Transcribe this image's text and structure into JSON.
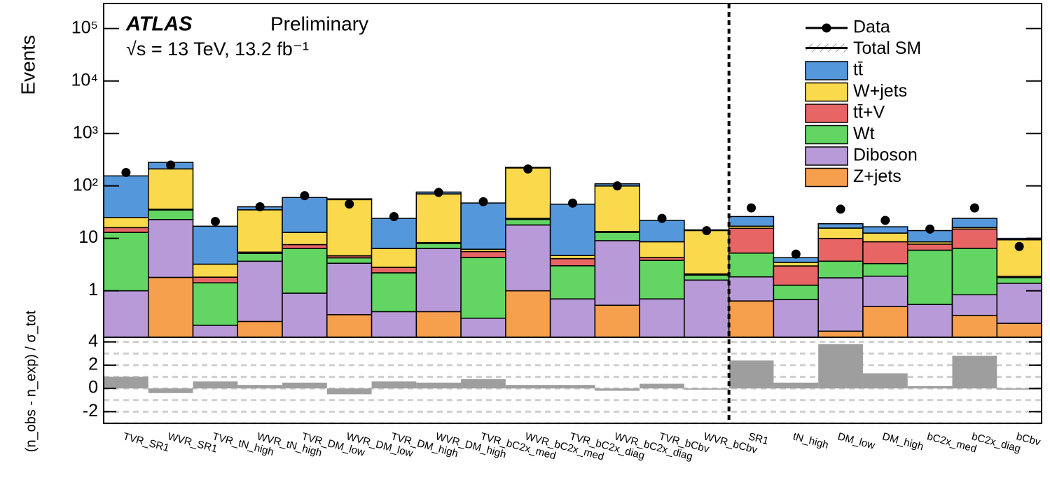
{
  "chart_data": [
    {
      "type": "stacked_bar",
      "ylabel": "Events",
      "annotations": [
        "ATLAS",
        "Preliminary",
        "√s = 13 TeV, 13.2 fb⁻¹"
      ],
      "categories": [
        "TVR_SR1",
        "WVR_SR1",
        "TVR_tN_high",
        "WVR_tN_high",
        "TVR_DM_low",
        "WVR_DM_low",
        "TVR_DM_high",
        "WVR_DM_high",
        "TVR_bC2x_med",
        "WVR_bC2x_med",
        "TVR_bC2x_diag",
        "WVR_bC2x_diag",
        "TVR_bCbv",
        "WVR_bCbv",
        "SR1",
        "tN_high",
        "DM_low",
        "DM_high",
        "bC2x_med",
        "bC2x_diag",
        "bCbv"
      ],
      "log_scale": true,
      "ylim": [
        0.13,
        300000
      ],
      "yticks": [
        1,
        10,
        {
          "value": 100,
          "label": "10²"
        },
        {
          "value": 1000,
          "label": "10³"
        },
        {
          "value": 10000,
          "label": "10⁴"
        },
        {
          "value": 100000,
          "label": "10⁵"
        }
      ],
      "series": [
        {
          "name": "Z+jets",
          "color": "#f6a04d",
          "values": [
            0.05,
            1.8,
            0.02,
            0.26,
            0.05,
            0.35,
            0.03,
            0.4,
            0.03,
            1.0,
            0.05,
            0.53,
            0.05,
            0.05,
            0.64,
            0.03,
            0.17,
            0.5,
            0.03,
            0.34,
            0.24
          ]
        },
        {
          "name": "Diboson",
          "color": "#b99ad8",
          "values": [
            0.95,
            21,
            0.2,
            3.4,
            0.85,
            3.0,
            0.37,
            6,
            0.27,
            17,
            0.65,
            8.5,
            0.65,
            1.55,
            1.2,
            0.65,
            1.6,
            1.4,
            0.52,
            0.5,
            1.15
          ]
        },
        {
          "name": "Wt",
          "color": "#62d562",
          "values": [
            12,
            12,
            1.2,
            1.5,
            5.5,
            0.9,
            1.8,
            1.6,
            4,
            5,
            2.3,
            4,
            3.1,
            0.4,
            3.4,
            0.6,
            1.9,
            1.4,
            5.4,
            5.6,
            0.4
          ]
        },
        {
          "name": "tt̄+V",
          "color": "#e76565",
          "values": [
            3,
            1,
            0.4,
            0.3,
            1.2,
            0.4,
            0.6,
            0.3,
            1.3,
            1,
            1.1,
            0.5,
            0.5,
            0.1,
            10.3,
            1.7,
            6.3,
            5.3,
            1.8,
            8.6,
            0.1
          ]
        },
        {
          "name": "W+jets",
          "color": "#fada4c",
          "values": [
            9,
            175,
            1.4,
            29.5,
            5.4,
            50,
            3.6,
            62,
            0.6,
            196,
            0.6,
            86,
            4.3,
            12,
            1.5,
            0.5,
            5.7,
            4,
            0.8,
            1,
            7.5
          ]
        },
        {
          "name": "tt̄",
          "color": "#5597db",
          "values": [
            130,
            70,
            13.8,
            5,
            47,
            2,
            17.6,
            6,
            41,
            5,
            40,
            10,
            13.4,
            0.4,
            9,
            0.8,
            3.3,
            4,
            5.5,
            8,
            0.6
          ]
        }
      ],
      "data": {
        "name": "Data",
        "color": "#000000",
        "values": [
          180,
          250,
          21,
          40,
          65,
          45,
          26,
          75,
          50,
          210,
          47,
          100,
          24,
          14,
          38,
          5,
          36,
          22,
          15,
          38,
          7
        ]
      },
      "total_label": "Total SM"
    },
    {
      "type": "bar",
      "ylabel": "(n_obs - n_exp) / σ_tot",
      "ylim": [
        -3,
        4.4
      ],
      "yticks": [
        -2,
        0,
        2,
        4
      ],
      "ygrid": [
        -3,
        -2,
        -1,
        0,
        1,
        2,
        3,
        4
      ],
      "color": "#9e9e9e",
      "values": [
        1.0,
        -0.4,
        0.6,
        0.3,
        0.5,
        -0.5,
        0.6,
        0.5,
        0.8,
        0.3,
        0.3,
        -0.2,
        0.4,
        -0.1,
        2.4,
        0.5,
        3.8,
        1.3,
        0.2,
        2.8,
        -0.1
      ]
    }
  ]
}
